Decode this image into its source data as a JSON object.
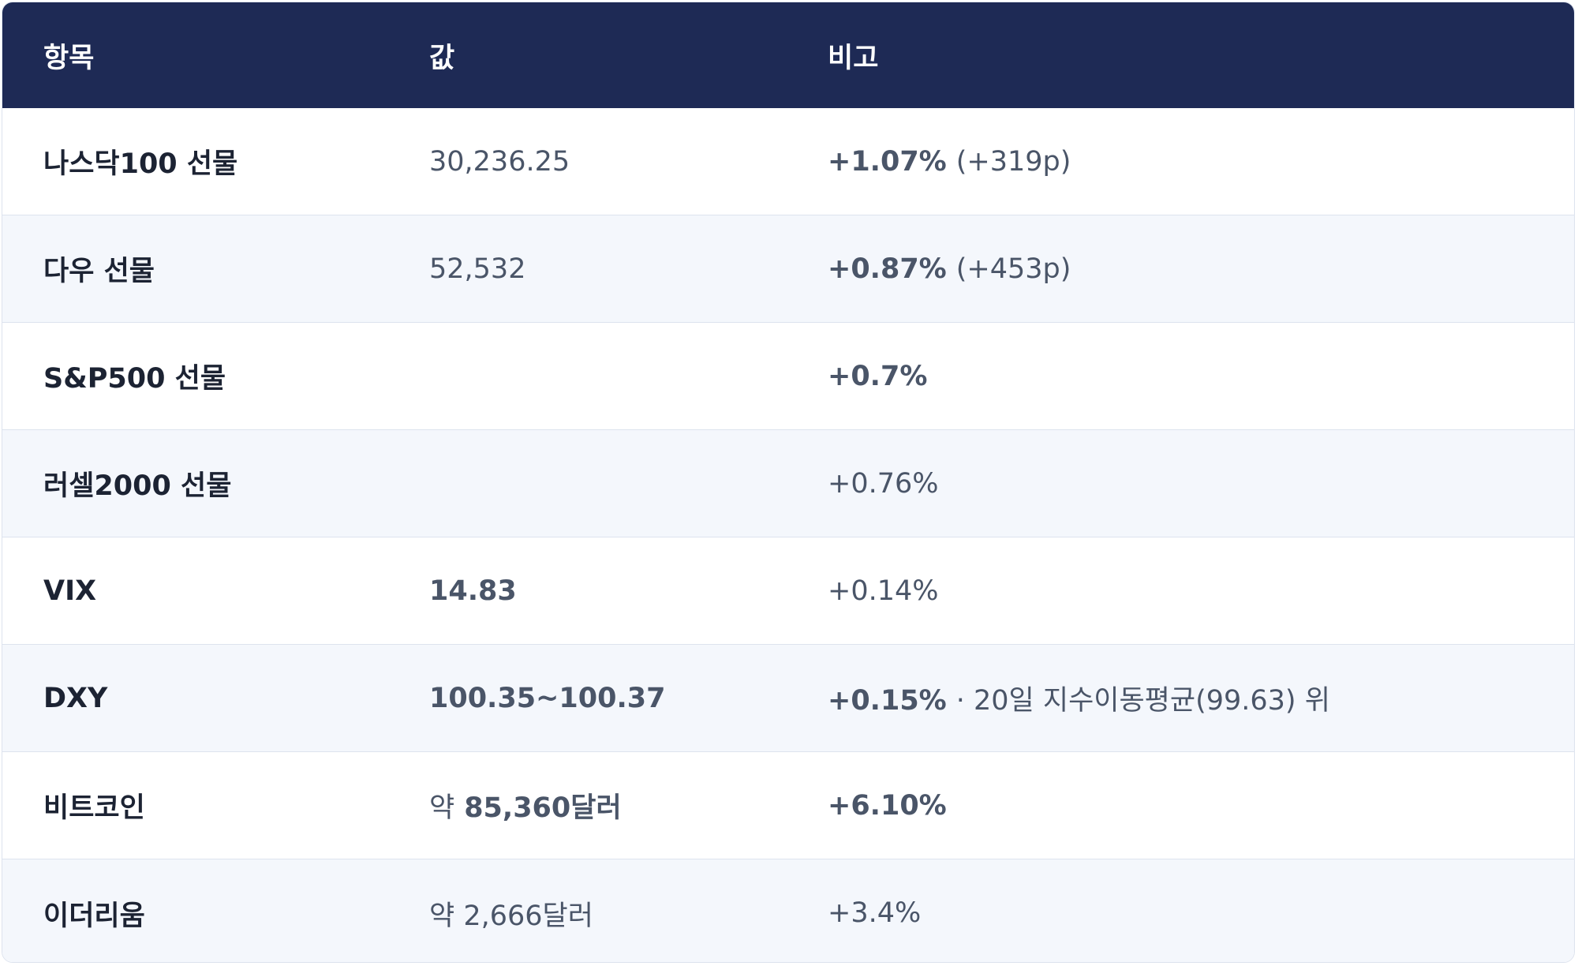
{
  "table": {
    "columns": [
      "항목",
      "값",
      "비고"
    ],
    "rows": [
      {
        "item": "나스닥100 선물",
        "value": [
          {
            "text": "30,236.25",
            "bold": false
          }
        ],
        "note": [
          {
            "text": "+1.07%",
            "bold": true
          },
          {
            "text": "(+319p)",
            "bold": false
          }
        ]
      },
      {
        "item": "다우 선물",
        "value": [
          {
            "text": "52,532",
            "bold": false
          }
        ],
        "note": [
          {
            "text": "+0.87%",
            "bold": true
          },
          {
            "text": "(+453p)",
            "bold": false
          }
        ]
      },
      {
        "item": "S&P500 선물",
        "value": [],
        "note": [
          {
            "text": "+0.7%",
            "bold": true
          }
        ]
      },
      {
        "item": "러셀2000 선물",
        "value": [],
        "note": [
          {
            "text": "+0.76%",
            "bold": false
          }
        ]
      },
      {
        "item": "VIX",
        "value": [
          {
            "text": "14.83",
            "bold": true
          }
        ],
        "note": [
          {
            "text": "+0.14%",
            "bold": false
          }
        ]
      },
      {
        "item": "DXY",
        "value": [
          {
            "text": "100.35~100.37",
            "bold": true
          }
        ],
        "note": [
          {
            "text": "+0.15%",
            "bold": true
          },
          {
            "text": "· 20일 지수이동평균(99.63) 위",
            "bold": false
          }
        ]
      },
      {
        "item": "비트코인",
        "value": [
          {
            "text": "약",
            "bold": false
          },
          {
            "text": "85,360달러",
            "bold": true
          }
        ],
        "note": [
          {
            "text": "+6.10%",
            "bold": true
          }
        ]
      },
      {
        "item": "이더리움",
        "value": [
          {
            "text": "약 2,666달러",
            "bold": false
          }
        ],
        "note": [
          {
            "text": "+3.4%",
            "bold": false
          }
        ]
      }
    ]
  }
}
